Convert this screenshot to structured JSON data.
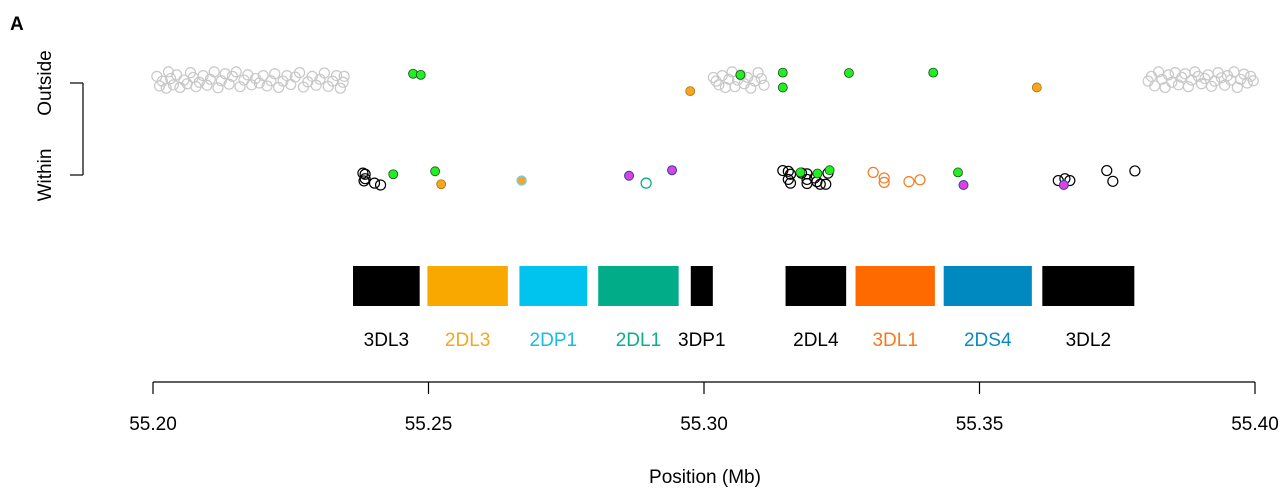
{
  "panel_label": "A",
  "chart_data": {
    "type": "scatter",
    "xlabel": "Position (Mb)",
    "xlim": [
      55.2,
      55.4
    ],
    "x_ticks": [
      55.2,
      55.25,
      55.3,
      55.35,
      55.4
    ],
    "x_tick_labels": [
      "55.20",
      "55.25",
      "55.30",
      "55.35",
      "55.40"
    ],
    "y_categories": [
      "Within",
      "Outside"
    ],
    "colors": {
      "grey_open": "#c8c8c8",
      "black_open": "#000000",
      "green": "#22ee22",
      "orange": "#f5a623",
      "magenta": "#e040e0",
      "teal_open": "#00a987",
      "orange_open": "#f47a1f",
      "cyan": "#00c3ee",
      "lightblue": "#77ccee",
      "navy": "#2244aa"
    },
    "genes": [
      {
        "name": "3DL3",
        "start": 55.2363,
        "end": 55.2484,
        "color": "#000000",
        "label_color": "#000000"
      },
      {
        "name": "2DL3",
        "start": 55.2498,
        "end": 55.2644,
        "color": "#f9a800",
        "label_color": "#f5a623"
      },
      {
        "name": "2DP1",
        "start": 55.2665,
        "end": 55.2788,
        "color": "#00c3ee",
        "label_color": "#1abbe6"
      },
      {
        "name": "2DL1",
        "start": 55.2808,
        "end": 55.2954,
        "color": "#00ad88",
        "label_color": "#0fae8a"
      },
      {
        "name": "3DP1",
        "start": 55.2976,
        "end": 55.3016,
        "color": "#000000",
        "label_color": "#000000"
      },
      {
        "name": "2DL4",
        "start": 55.3148,
        "end": 55.3258,
        "color": "#000000",
        "label_color": "#000000"
      },
      {
        "name": "3DL1",
        "start": 55.3275,
        "end": 55.3419,
        "color": "#ff6a00",
        "label_color": "#f47a1f"
      },
      {
        "name": "2DS4",
        "start": 55.3435,
        "end": 55.3595,
        "color": "#0088c1",
        "label_color": "#0a88c2"
      },
      {
        "name": "3DL2",
        "start": 55.3614,
        "end": 55.3781,
        "color": "#000000",
        "label_color": "#000000"
      }
    ],
    "series": [
      {
        "category": "Outside",
        "style": "grey_open",
        "points": [
          [
            55.2007,
            0.18
          ],
          [
            55.2012,
            -0.08
          ],
          [
            55.2017,
            0.05
          ],
          [
            55.2024,
            -0.14
          ],
          [
            55.2028,
            0.3
          ],
          [
            55.2032,
            0.12
          ],
          [
            55.2037,
            -0.05
          ],
          [
            55.2043,
            0.22
          ],
          [
            55.2049,
            -0.12
          ],
          [
            55.2056,
            0.08
          ],
          [
            55.2062,
            -0.02
          ],
          [
            55.2068,
            0.28
          ],
          [
            55.2073,
            0.15
          ],
          [
            55.2078,
            -0.1
          ],
          [
            55.2084,
            0.02
          ],
          [
            55.2091,
            0.2
          ],
          [
            55.2098,
            -0.06
          ],
          [
            55.2104,
            0.1
          ],
          [
            55.2111,
            0.3
          ],
          [
            55.2118,
            -0.13
          ],
          [
            55.2124,
            0.06
          ],
          [
            55.2131,
            0.25
          ],
          [
            55.2138,
            -0.03
          ],
          [
            55.2144,
            0.18
          ],
          [
            55.2151,
            0.3
          ],
          [
            55.2158,
            -0.1
          ],
          [
            55.2165,
            0.08
          ],
          [
            55.2172,
            0.22
          ],
          [
            55.2179,
            -0.05
          ],
          [
            55.2186,
            0.12
          ],
          [
            55.2193,
            0.0
          ],
          [
            55.22,
            0.2
          ],
          [
            55.2207,
            -0.08
          ],
          [
            55.2214,
            0.06
          ],
          [
            55.2221,
            0.25
          ],
          [
            55.2228,
            -0.12
          ],
          [
            55.2236,
            0.05
          ],
          [
            55.2243,
            0.2
          ],
          [
            55.225,
            -0.04
          ],
          [
            55.2258,
            0.16
          ],
          [
            55.2266,
            0.28
          ],
          [
            55.2273,
            -0.11
          ],
          [
            55.2281,
            0.03
          ],
          [
            55.2289,
            0.18
          ],
          [
            55.2296,
            -0.06
          ],
          [
            55.2303,
            0.1
          ],
          [
            55.2311,
            0.27
          ],
          [
            55.2318,
            -0.09
          ],
          [
            55.2326,
            0.05
          ],
          [
            55.2333,
            0.2
          ],
          [
            55.234,
            -0.14
          ],
          [
            55.2345,
            0.02
          ],
          [
            55.2347,
            0.18
          ],
          [
            55.3017,
            0.15
          ],
          [
            55.3022,
            0.05
          ],
          [
            55.3027,
            -0.05
          ],
          [
            55.3033,
            0.2
          ],
          [
            55.3039,
            -0.12
          ],
          [
            55.3045,
            0.1
          ],
          [
            55.3051,
            0.3
          ],
          [
            55.3056,
            -0.1
          ],
          [
            55.3061,
            0.08
          ],
          [
            55.3067,
            0.22
          ],
          [
            55.3073,
            -0.02
          ],
          [
            55.3079,
            0.15
          ],
          [
            55.3085,
            -0.14
          ],
          [
            55.3092,
            0.05
          ],
          [
            55.3098,
            0.28
          ],
          [
            55.3104,
            0.12
          ],
          [
            55.3109,
            -0.06
          ],
          [
            55.3806,
            0.05
          ],
          [
            55.3812,
            0.18
          ],
          [
            55.3818,
            -0.08
          ],
          [
            55.3825,
            0.3
          ],
          [
            55.3831,
            0.1
          ],
          [
            55.3837,
            -0.12
          ],
          [
            55.3843,
            0.22
          ],
          [
            55.3849,
            0.02
          ],
          [
            55.3855,
            0.28
          ],
          [
            55.3861,
            -0.05
          ],
          [
            55.3867,
            0.15
          ],
          [
            55.3873,
            0.25
          ],
          [
            55.3879,
            -0.1
          ],
          [
            55.3885,
            0.08
          ],
          [
            55.3891,
            0.3
          ],
          [
            55.3897,
            0.18
          ],
          [
            55.3903,
            -0.02
          ],
          [
            55.3909,
            0.12
          ],
          [
            55.3915,
            0.22
          ],
          [
            55.3921,
            -0.09
          ],
          [
            55.3927,
            0.05
          ],
          [
            55.3933,
            0.28
          ],
          [
            55.3939,
            0.14
          ],
          [
            55.3945,
            -0.06
          ],
          [
            55.395,
            0.2
          ],
          [
            55.3956,
            0.08
          ],
          [
            55.3962,
            0.3
          ],
          [
            55.3968,
            -0.12
          ],
          [
            55.3974,
            0.1
          ],
          [
            55.398,
            0.24
          ],
          [
            55.3986,
            0.0
          ],
          [
            55.3992,
            0.18
          ],
          [
            55.3997,
            0.06
          ]
        ]
      },
      {
        "category": "Outside",
        "style": "green",
        "points": [
          [
            55.2472,
            0.25
          ],
          [
            55.2486,
            0.22
          ],
          [
            55.3066,
            0.22
          ],
          [
            55.3143,
            0.28
          ],
          [
            55.3143,
            -0.12
          ],
          [
            55.3263,
            0.27
          ],
          [
            55.3416,
            0.28
          ]
        ]
      },
      {
        "category": "Outside",
        "style": "orange",
        "points": [
          [
            55.2975,
            -0.22
          ],
          [
            55.3604,
            -0.12
          ]
        ]
      },
      {
        "category": "Within",
        "style": "black_open",
        "points": [
          [
            55.2381,
            0.05
          ],
          [
            55.2385,
            0.02
          ],
          [
            55.2385,
            -0.1
          ],
          [
            55.2383,
            -0.16
          ],
          [
            55.2402,
            -0.22
          ],
          [
            55.2413,
            -0.27
          ],
          [
            55.3143,
            0.12
          ],
          [
            55.3153,
            0.1
          ],
          [
            55.3157,
            0.02
          ],
          [
            55.3153,
            -0.12
          ],
          [
            55.3157,
            -0.22
          ],
          [
            55.3177,
            0.05
          ],
          [
            55.3187,
            0.03
          ],
          [
            55.3187,
            -0.12
          ],
          [
            55.3187,
            -0.23
          ],
          [
            55.3201,
            -0.08
          ],
          [
            55.3205,
            -0.18
          ],
          [
            55.3211,
            -0.25
          ],
          [
            55.3221,
            -0.25
          ],
          [
            55.3225,
            0.05
          ],
          [
            55.3643,
            -0.15
          ],
          [
            55.3655,
            -0.1
          ],
          [
            55.3664,
            -0.15
          ],
          [
            55.3731,
            0.12
          ],
          [
            55.3742,
            -0.17
          ],
          [
            55.3782,
            0.11
          ]
        ]
      },
      {
        "category": "Within",
        "style": "green",
        "points": [
          [
            55.2436,
            0.02
          ],
          [
            55.2512,
            0.1
          ],
          [
            55.3175,
            0.07
          ],
          [
            55.3206,
            0.04
          ],
          [
            55.3228,
            0.13
          ],
          [
            55.3461,
            0.07
          ]
        ]
      },
      {
        "category": "Within",
        "style": "orange",
        "points": [
          [
            55.2523,
            -0.25
          ],
          [
            55.2669,
            -0.15
          ]
        ]
      },
      {
        "category": "Within",
        "style": "cyan",
        "points": [
          [
            55.2669,
            -0.15
          ]
        ]
      },
      {
        "category": "Within",
        "style": "magenta",
        "points": [
          [
            55.2864,
            -0.02
          ],
          [
            55.2942,
            0.13
          ],
          [
            55.3471,
            -0.27
          ],
          [
            55.3653,
            -0.27
          ]
        ]
      },
      {
        "category": "Within",
        "style": "teal_open",
        "points": [
          [
            55.2895,
            -0.22
          ]
        ]
      },
      {
        "category": "Within",
        "style": "orange_open",
        "points": [
          [
            55.3307,
            0.07
          ],
          [
            55.3327,
            -0.08
          ],
          [
            55.3327,
            -0.2
          ],
          [
            55.3372,
            -0.18
          ],
          [
            55.3392,
            -0.13
          ]
        ]
      }
    ]
  }
}
